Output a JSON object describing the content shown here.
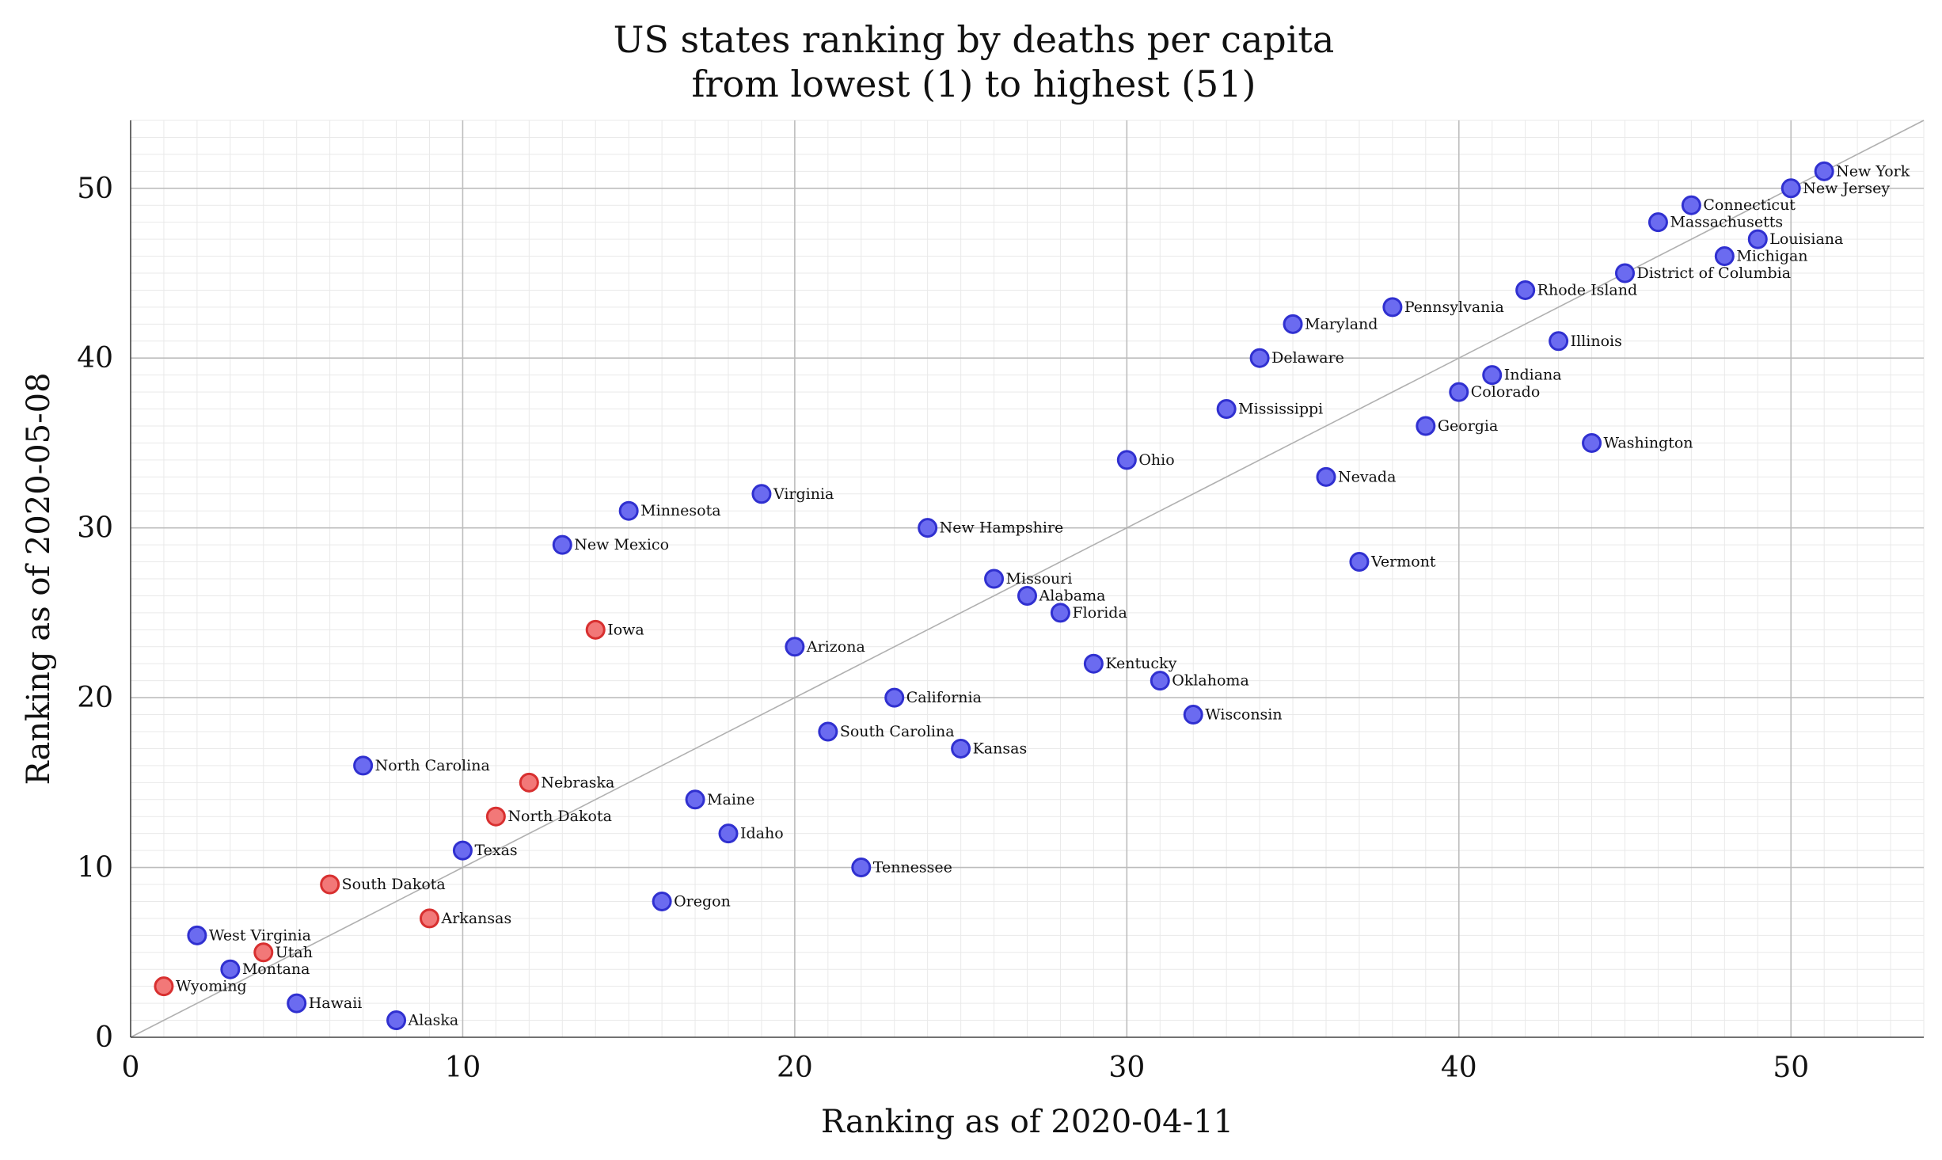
{
  "chart_data": {
    "type": "scatter",
    "title": "US states ranking by deaths per capita\nfrom lowest (1) to highest (51)",
    "xlabel": "Ranking as of 2020-04-11",
    "ylabel": "Ranking as of 2020-05-08",
    "xlim": [
      0,
      54
    ],
    "ylim": [
      0,
      54
    ],
    "x_ticks": [
      0,
      10,
      20,
      30,
      40,
      50
    ],
    "y_ticks": [
      0,
      10,
      20,
      30,
      40,
      50
    ],
    "grid": true,
    "diagonal_line": true,
    "colors": {
      "blue": "#6b6bf0",
      "blue_edge": "#3030d0",
      "red": "#f27878",
      "red_edge": "#d83030",
      "diagonal": "#b0b0b0",
      "major_grid": "#bdbdbd",
      "minor_grid": "#e9e9e9"
    },
    "points": [
      {
        "label": "Wyoming",
        "x": 1,
        "y": 3,
        "color": "red"
      },
      {
        "label": "West Virginia",
        "x": 2,
        "y": 6,
        "color": "blue"
      },
      {
        "label": "Montana",
        "x": 3,
        "y": 4,
        "color": "blue"
      },
      {
        "label": "Utah",
        "x": 4,
        "y": 5,
        "color": "red"
      },
      {
        "label": "Hawaii",
        "x": 5,
        "y": 2,
        "color": "blue"
      },
      {
        "label": "South Dakota",
        "x": 6,
        "y": 9,
        "color": "red"
      },
      {
        "label": "North Carolina",
        "x": 7,
        "y": 16,
        "color": "blue"
      },
      {
        "label": "Alaska",
        "x": 8,
        "y": 1,
        "color": "blue"
      },
      {
        "label": "Arkansas",
        "x": 9,
        "y": 7,
        "color": "red"
      },
      {
        "label": "Texas",
        "x": 10,
        "y": 11,
        "color": "blue"
      },
      {
        "label": "North Dakota",
        "x": 11,
        "y": 13,
        "color": "red"
      },
      {
        "label": "Nebraska",
        "x": 12,
        "y": 15,
        "color": "red"
      },
      {
        "label": "New Mexico",
        "x": 13,
        "y": 29,
        "color": "blue"
      },
      {
        "label": "Iowa",
        "x": 14,
        "y": 24,
        "color": "red"
      },
      {
        "label": "Minnesota",
        "x": 15,
        "y": 31,
        "color": "blue"
      },
      {
        "label": "Oregon",
        "x": 16,
        "y": 8,
        "color": "blue"
      },
      {
        "label": "Maine",
        "x": 17,
        "y": 14,
        "color": "blue"
      },
      {
        "label": "Idaho",
        "x": 18,
        "y": 12,
        "color": "blue"
      },
      {
        "label": "Virginia",
        "x": 19,
        "y": 32,
        "color": "blue"
      },
      {
        "label": "Arizona",
        "x": 20,
        "y": 23,
        "color": "blue"
      },
      {
        "label": "South Carolina",
        "x": 21,
        "y": 18,
        "color": "blue"
      },
      {
        "label": "Tennessee",
        "x": 22,
        "y": 10,
        "color": "blue"
      },
      {
        "label": "California",
        "x": 23,
        "y": 20,
        "color": "blue"
      },
      {
        "label": "New Hampshire",
        "x": 24,
        "y": 30,
        "color": "blue"
      },
      {
        "label": "Kansas",
        "x": 25,
        "y": 17,
        "color": "blue"
      },
      {
        "label": "Missouri",
        "x": 26,
        "y": 27,
        "color": "blue"
      },
      {
        "label": "Alabama",
        "x": 27,
        "y": 26,
        "color": "blue"
      },
      {
        "label": "Florida",
        "x": 28,
        "y": 25,
        "color": "blue"
      },
      {
        "label": "Kentucky",
        "x": 29,
        "y": 22,
        "color": "blue"
      },
      {
        "label": "Ohio",
        "x": 30,
        "y": 34,
        "color": "blue"
      },
      {
        "label": "Oklahoma",
        "x": 31,
        "y": 21,
        "color": "blue"
      },
      {
        "label": "Wisconsin",
        "x": 32,
        "y": 19,
        "color": "blue"
      },
      {
        "label": "Mississippi",
        "x": 33,
        "y": 37,
        "color": "blue"
      },
      {
        "label": "Delaware",
        "x": 34,
        "y": 40,
        "color": "blue"
      },
      {
        "label": "Maryland",
        "x": 35,
        "y": 42,
        "color": "blue"
      },
      {
        "label": "Nevada",
        "x": 36,
        "y": 33,
        "color": "blue"
      },
      {
        "label": "Vermont",
        "x": 37,
        "y": 28,
        "color": "blue"
      },
      {
        "label": "Pennsylvania",
        "x": 38,
        "y": 43,
        "color": "blue"
      },
      {
        "label": "Georgia",
        "x": 39,
        "y": 36,
        "color": "blue"
      },
      {
        "label": "Colorado",
        "x": 40,
        "y": 38,
        "color": "blue"
      },
      {
        "label": "Indiana",
        "x": 41,
        "y": 39,
        "color": "blue"
      },
      {
        "label": "Rhode Island",
        "x": 42,
        "y": 44,
        "color": "blue"
      },
      {
        "label": "Illinois",
        "x": 43,
        "y": 41,
        "color": "blue"
      },
      {
        "label": "Washington",
        "x": 44,
        "y": 35,
        "color": "blue"
      },
      {
        "label": "District of Columbia",
        "x": 45,
        "y": 45,
        "color": "blue"
      },
      {
        "label": "Massachusetts",
        "x": 46,
        "y": 48,
        "color": "blue"
      },
      {
        "label": "Connecticut",
        "x": 47,
        "y": 49,
        "color": "blue"
      },
      {
        "label": "Michigan",
        "x": 48,
        "y": 46,
        "color": "blue"
      },
      {
        "label": "Louisiana",
        "x": 49,
        "y": 47,
        "color": "blue"
      },
      {
        "label": "New Jersey",
        "x": 50,
        "y": 50,
        "color": "blue"
      },
      {
        "label": "New York",
        "x": 51,
        "y": 51,
        "color": "blue"
      }
    ]
  }
}
